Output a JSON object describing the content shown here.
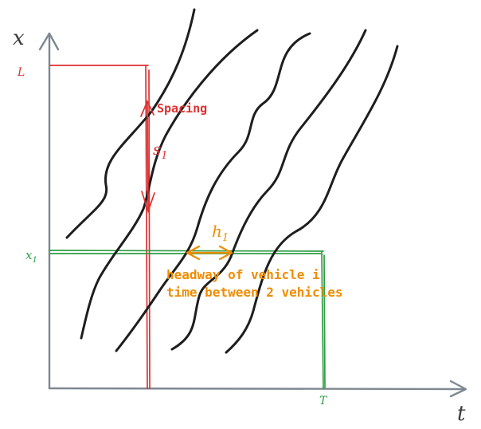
{
  "axes": {
    "x_label": "x",
    "t_label": "t"
  },
  "markers": {
    "L": "L",
    "x1": "x",
    "x1_sub": "1",
    "T": "T"
  },
  "spacing": {
    "title": "Spacing",
    "symbol": "s",
    "symbol_sub": "1"
  },
  "headway": {
    "symbol": "h",
    "symbol_sub": "1",
    "line1": "headway of vehicle i",
    "line2": "time between 2 vehicles"
  },
  "colors": {
    "axis": "#7d8891",
    "trajectory": "#1e1e1e",
    "spacing": "#e03131",
    "reference": "#2f9e44",
    "headway": "#f08c00"
  }
}
